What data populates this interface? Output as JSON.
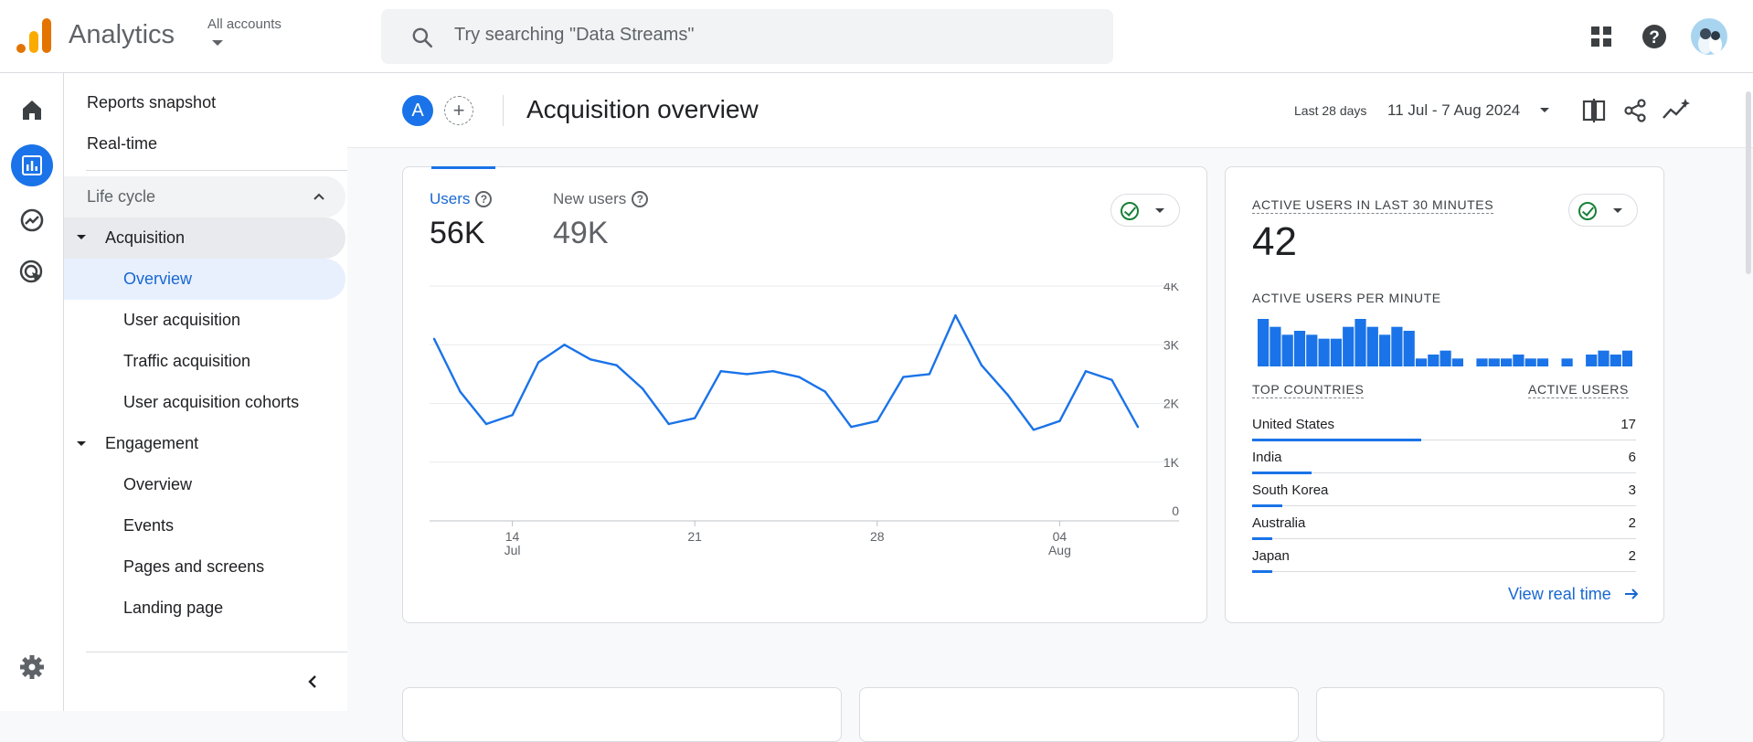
{
  "app": {
    "title": "Analytics",
    "accounts_label": "All accounts"
  },
  "search": {
    "placeholder": "Try searching \"Data Streams\""
  },
  "icons": {
    "apps": "apps-grid-icon",
    "help": "help-icon",
    "home": "home-icon",
    "reports": "reports-icon",
    "explore": "explore-icon",
    "advertising": "advertising-icon",
    "settings": "settings-icon"
  },
  "nav": {
    "reports_snapshot": "Reports snapshot",
    "realtime": "Real-time",
    "lifecycle": "Life cycle",
    "acquisition": "Acquisition",
    "acq_overview": "Overview",
    "user_acquisition": "User acquisition",
    "traffic_acquisition": "Traffic acquisition",
    "user_acq_cohorts": "User acquisition cohorts",
    "engagement": "Engagement",
    "eng_overview": "Overview",
    "events": "Events",
    "pages_screens": "Pages and screens",
    "landing_page": "Landing page"
  },
  "header": {
    "badge": "A",
    "add": "+",
    "title": "Acquisition overview",
    "date_label": "Last 28 days",
    "date_range": "11 Jul - 7 Aug 2024"
  },
  "metrics": {
    "users_label": "Users",
    "users_value": "56K",
    "new_users_label": "New users",
    "new_users_value": "49K"
  },
  "chart_data": {
    "type": "line",
    "x": [
      "11 Jul",
      "12 Jul",
      "13 Jul",
      "14 Jul",
      "15 Jul",
      "16 Jul",
      "17 Jul",
      "18 Jul",
      "19 Jul",
      "20 Jul",
      "21 Jul",
      "22 Jul",
      "23 Jul",
      "24 Jul",
      "25 Jul",
      "26 Jul",
      "27 Jul",
      "28 Jul",
      "29 Jul",
      "30 Jul",
      "31 Jul",
      "01 Aug",
      "02 Aug",
      "03 Aug",
      "04 Aug",
      "05 Aug",
      "06 Aug",
      "07 Aug"
    ],
    "series": [
      {
        "values": [
          3100,
          2200,
          1650,
          1800,
          2700,
          3000,
          2750,
          2650,
          2250,
          1650,
          1750,
          2550,
          2500,
          2550,
          2450,
          2200,
          1600,
          1700,
          2450,
          2500,
          3500,
          2650,
          2150,
          1550,
          1700,
          2550,
          2400,
          1600
        ]
      }
    ],
    "y_ticks": [
      "4K",
      "3K",
      "2K",
      "1K",
      "0"
    ],
    "ylim": [
      0,
      4000
    ],
    "x_ticks": [
      {
        "index": 3,
        "top": "14",
        "bottom": "Jul"
      },
      {
        "index": 10,
        "top": "21",
        "bottom": ""
      },
      {
        "index": 17,
        "top": "28",
        "bottom": ""
      },
      {
        "index": 24,
        "top": "04",
        "bottom": "Aug"
      }
    ],
    "grid": true,
    "color": "#1a73e8"
  },
  "realtime": {
    "heading": "ACTIVE USERS IN LAST 30 MINUTES",
    "value": "42",
    "per_minute_label": "ACTIVE USERS PER MINUTE",
    "per_minute_values": [
      6,
      5,
      4,
      4.5,
      4,
      3.5,
      3.5,
      5,
      6,
      5,
      4,
      5,
      4.5,
      1,
      1.5,
      2,
      1,
      0,
      1,
      1,
      1,
      1.5,
      1,
      1,
      0,
      1,
      0,
      1.5,
      2,
      1.5,
      2
    ],
    "countries_label": "TOP COUNTRIES",
    "users_label": "ACTIVE USERS",
    "countries": [
      {
        "name": "United States",
        "value": "17",
        "share": 1.0
      },
      {
        "name": "India",
        "value": "6",
        "share": 0.353
      },
      {
        "name": "South Korea",
        "value": "3",
        "share": 0.176
      },
      {
        "name": "Australia",
        "value": "2",
        "share": 0.118
      },
      {
        "name": "Japan",
        "value": "2",
        "share": 0.118
      }
    ],
    "view_link": "View real time"
  }
}
